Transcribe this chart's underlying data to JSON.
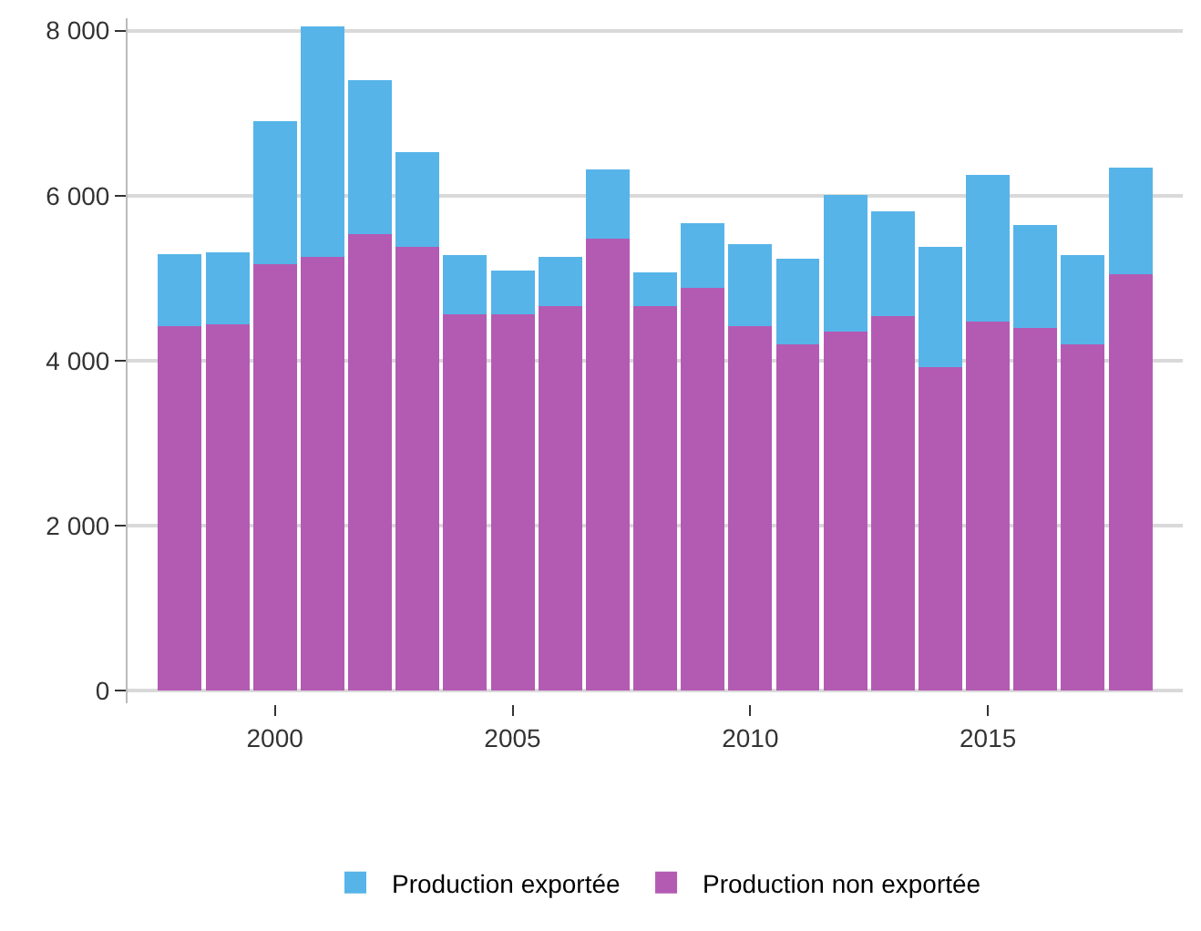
{
  "chart_data": {
    "type": "bar",
    "stacked": true,
    "x": [
      1998,
      1999,
      2000,
      2001,
      2002,
      2003,
      2004,
      2005,
      2006,
      2007,
      2008,
      2009,
      2010,
      2011,
      2012,
      2013,
      2014,
      2015,
      2016,
      2017,
      2018
    ],
    "series": [
      {
        "name": "Production non exportée",
        "color": "#b35bb3",
        "values": [
          4420,
          4440,
          5170,
          5260,
          5530,
          5380,
          4560,
          4560,
          4660,
          5480,
          4660,
          4880,
          4420,
          4200,
          4350,
          4540,
          3920,
          4470,
          4400,
          4200,
          5050
        ]
      },
      {
        "name": "Production exportée",
        "color": "#56b4e9",
        "values": [
          870,
          870,
          1730,
          2790,
          1870,
          1150,
          720,
          530,
          600,
          840,
          410,
          790,
          990,
          1040,
          1660,
          1270,
          1460,
          1780,
          1250,
          1080,
          1290
        ]
      }
    ],
    "xlim": [
      1996.9,
      2019.1
    ],
    "xticks": [
      2000,
      2005,
      2010,
      2015
    ],
    "ylim": [
      -150,
      8150
    ],
    "yticks": [
      {
        "value": 0,
        "label": "0"
      },
      {
        "value": 2000,
        "label": "2 000"
      },
      {
        "value": 4000,
        "label": "4 000"
      },
      {
        "value": 6000,
        "label": "6 000"
      },
      {
        "value": 8000,
        "label": "8 000"
      }
    ],
    "grid": "y",
    "legend": "bottom"
  }
}
